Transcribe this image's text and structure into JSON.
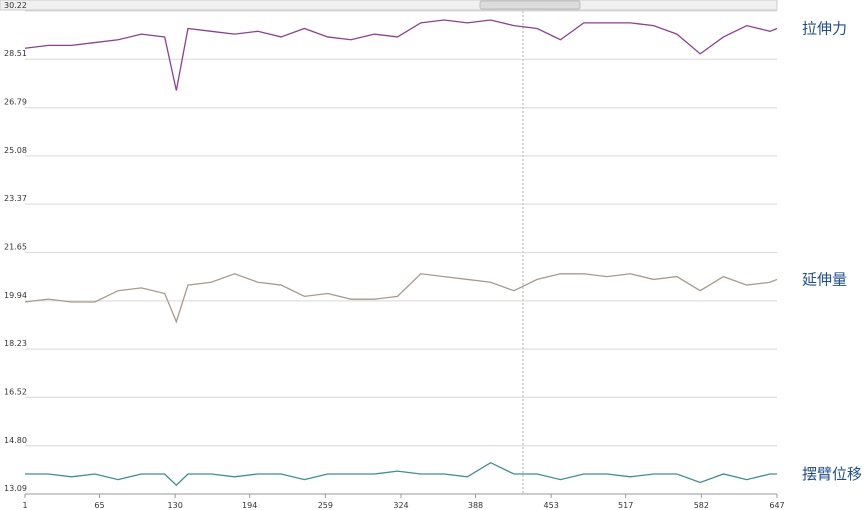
{
  "chart_data": {
    "type": "line",
    "x": [
      1,
      21,
      41,
      61,
      81,
      101,
      121,
      131,
      141,
      161,
      181,
      201,
      221,
      241,
      261,
      281,
      301,
      321,
      341,
      361,
      381,
      401,
      421,
      441,
      461,
      481,
      501,
      521,
      541,
      561,
      581,
      601,
      621,
      641,
      647
    ],
    "series": [
      {
        "name": "拉伸力",
        "color": "#8e3f92",
        "values": [
          28.9,
          29.0,
          29.0,
          29.1,
          29.2,
          29.4,
          29.3,
          27.4,
          29.6,
          29.5,
          29.4,
          29.5,
          29.3,
          29.6,
          29.3,
          29.2,
          29.4,
          29.3,
          29.8,
          29.9,
          29.8,
          29.9,
          29.7,
          29.6,
          29.2,
          29.8,
          29.8,
          29.8,
          29.7,
          29.4,
          28.7,
          29.3,
          29.7,
          29.5,
          29.6
        ]
      },
      {
        "name": "延伸量",
        "color": "#a89a8c",
        "values": [
          19.9,
          20.0,
          19.9,
          19.9,
          20.3,
          20.4,
          20.2,
          19.2,
          20.5,
          20.6,
          20.9,
          20.6,
          20.5,
          20.1,
          20.2,
          20.0,
          20.0,
          20.1,
          20.9,
          20.8,
          20.7,
          20.6,
          20.3,
          20.7,
          20.9,
          20.9,
          20.8,
          20.9,
          20.7,
          20.8,
          20.3,
          20.8,
          20.5,
          20.6,
          20.7
        ]
      },
      {
        "name": "摆臂位移",
        "color": "#3f8f92",
        "values": [
          13.8,
          13.8,
          13.7,
          13.8,
          13.6,
          13.8,
          13.8,
          13.4,
          13.8,
          13.8,
          13.7,
          13.8,
          13.8,
          13.6,
          13.8,
          13.8,
          13.8,
          13.9,
          13.8,
          13.8,
          13.7,
          14.2,
          13.8,
          13.8,
          13.6,
          13.8,
          13.8,
          13.7,
          13.8,
          13.8,
          13.5,
          13.8,
          13.6,
          13.8,
          13.8
        ]
      }
    ],
    "xlim": [
      1,
      647
    ],
    "xticks": [
      1,
      65,
      130,
      194,
      259,
      324,
      388,
      453,
      517,
      582,
      647
    ],
    "ylim": [
      13.09,
      30.22
    ],
    "yticks": [
      30.22,
      28.51,
      26.79,
      25.08,
      23.37,
      21.65,
      19.94,
      18.23,
      16.52,
      {
        "value": 14.8,
        "label": "14.80"
      },
      13.09
    ],
    "grid": true
  }
}
